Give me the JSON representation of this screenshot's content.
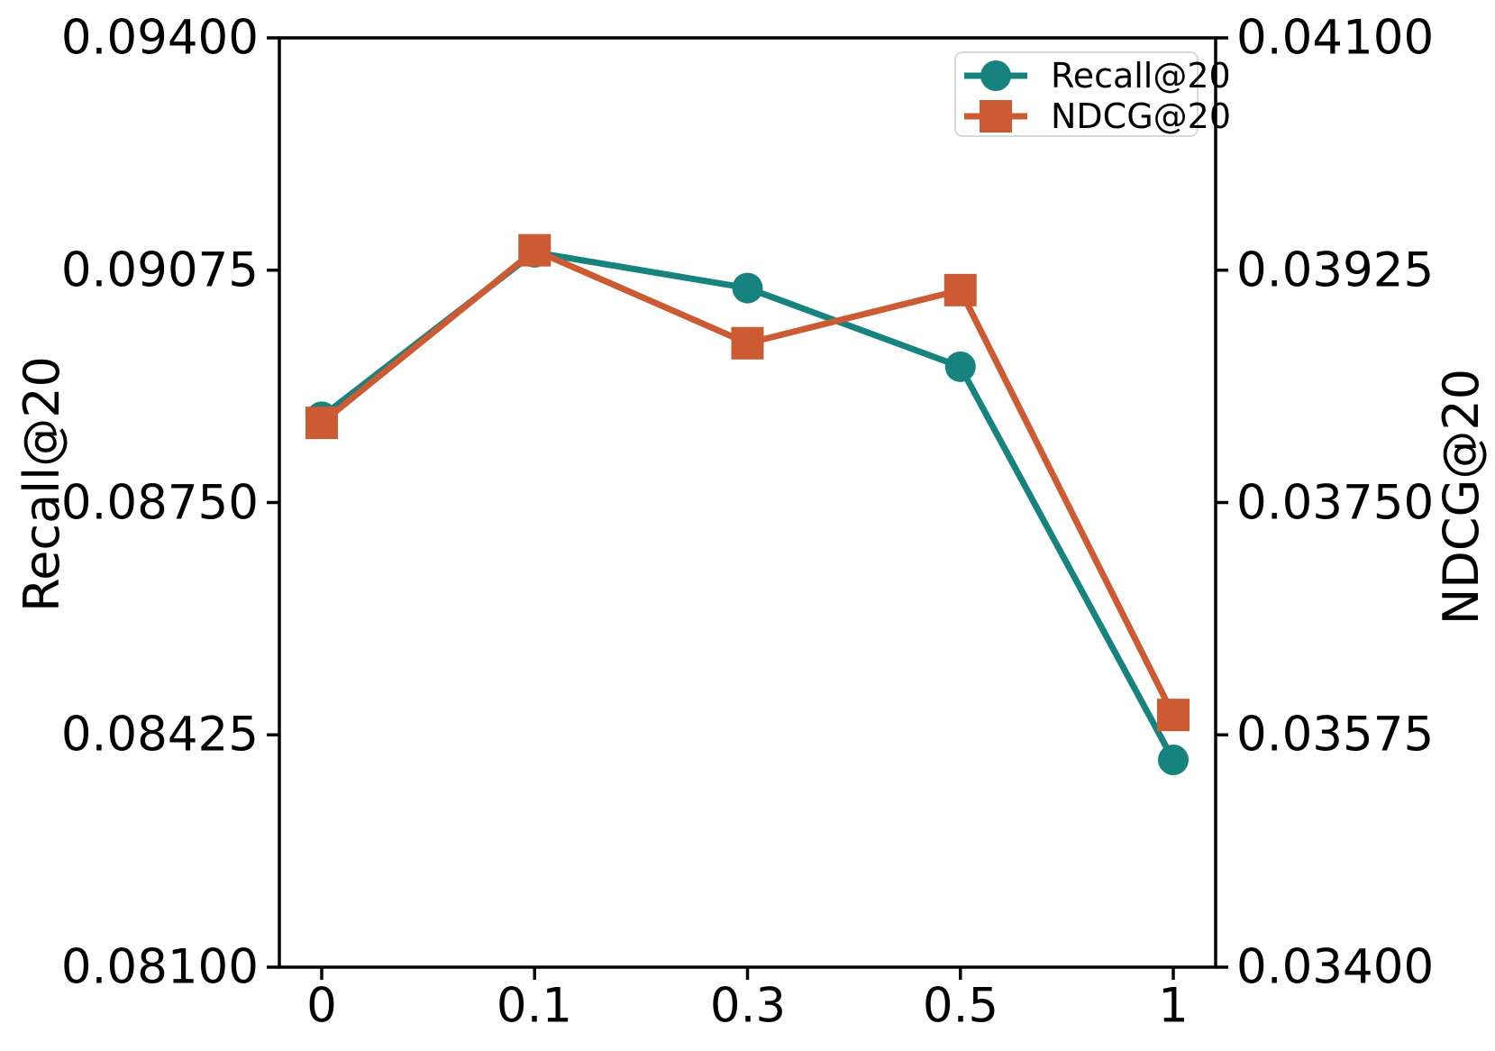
{
  "chart_data": {
    "type": "line",
    "x_tick_labels": [
      "0",
      "0.1",
      "0.3",
      "0.5",
      "1"
    ],
    "left_axis": {
      "label": "Recall@20",
      "min": 0.081,
      "max": 0.094,
      "ticks": [
        "0.09400",
        "0.09075",
        "0.08750",
        "0.08425",
        "0.08100"
      ]
    },
    "right_axis": {
      "label": "NDCG@20",
      "min": 0.034,
      "max": 0.041,
      "ticks": [
        "0.04100",
        "0.03925",
        "0.03750",
        "0.03575",
        "0.03400"
      ]
    },
    "series": [
      {
        "name": "Recall@20",
        "axis": "left",
        "marker": "circle",
        "color": "#17837f",
        "values": [
          0.0887,
          0.091,
          0.0905,
          0.0894,
          0.0839
        ]
      },
      {
        "name": "NDCG@20",
        "axis": "right",
        "marker": "square",
        "color": "#cc5b33",
        "values": [
          0.0381,
          0.0394,
          0.0387,
          0.0391,
          0.0359
        ]
      }
    ],
    "legend": {
      "position": "upper right",
      "entries": [
        "Recall@20",
        "NDCG@20"
      ]
    },
    "grid": false,
    "title": "",
    "xlabel": ""
  },
  "style": {
    "axis_color": "#000000",
    "background": "#ffffff"
  }
}
